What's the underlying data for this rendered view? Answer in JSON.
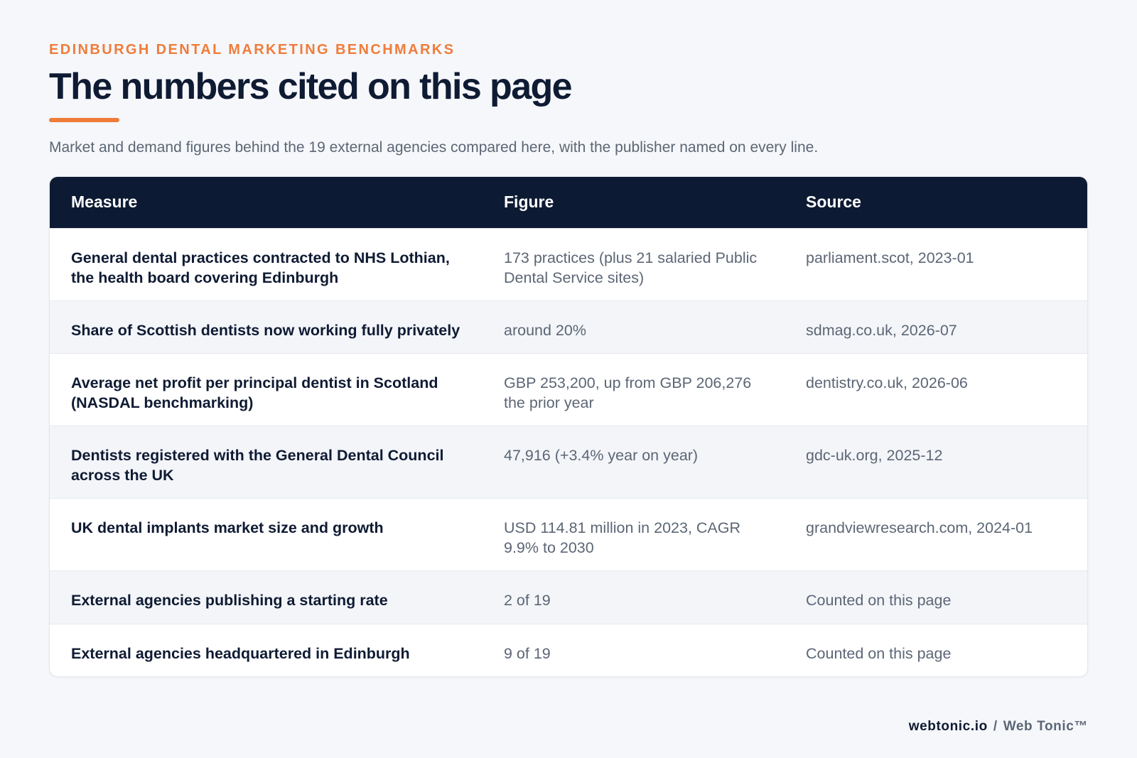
{
  "header": {
    "eyebrow": "EDINBURGH DENTAL MARKETING BENCHMARKS",
    "title": "The numbers cited on this page",
    "subtitle": "Market and demand figures behind the 19 external agencies compared here, with the publisher named on every line."
  },
  "table": {
    "columns": [
      "Measure",
      "Figure",
      "Source"
    ],
    "rows": [
      {
        "measure": "General dental practices contracted to NHS Lothian, the health board covering Edinburgh",
        "figure": "173 practices (plus 21 salaried Public Dental Service sites)",
        "source": "parliament.scot, 2023-01"
      },
      {
        "measure": "Share of Scottish dentists now working fully privately",
        "figure": "around 20%",
        "source": "sdmag.co.uk, 2026-07"
      },
      {
        "measure": "Average net profit per principal dentist in Scotland (NASDAL benchmarking)",
        "figure": "GBP 253,200, up from GBP 206,276 the prior year",
        "source": "dentistry.co.uk, 2026-06"
      },
      {
        "measure": "Dentists registered with the General Dental Council across the UK",
        "figure": "47,916 (+3.4% year on year)",
        "source": "gdc-uk.org, 2025-12"
      },
      {
        "measure": "UK dental implants market size and growth",
        "figure": "USD 114.81 million in 2023, CAGR 9.9% to 2030",
        "source": "grandviewresearch.com, 2024-01"
      },
      {
        "measure": "External agencies publishing a starting rate",
        "figure": "2 of 19",
        "source": "Counted on this page"
      },
      {
        "measure": "External agencies headquartered in Edinburgh",
        "figure": "9 of 19",
        "source": "Counted on this page"
      }
    ]
  },
  "footer": {
    "site": "webtonic.io",
    "separator": "/",
    "brand": "Web Tonic™"
  }
}
